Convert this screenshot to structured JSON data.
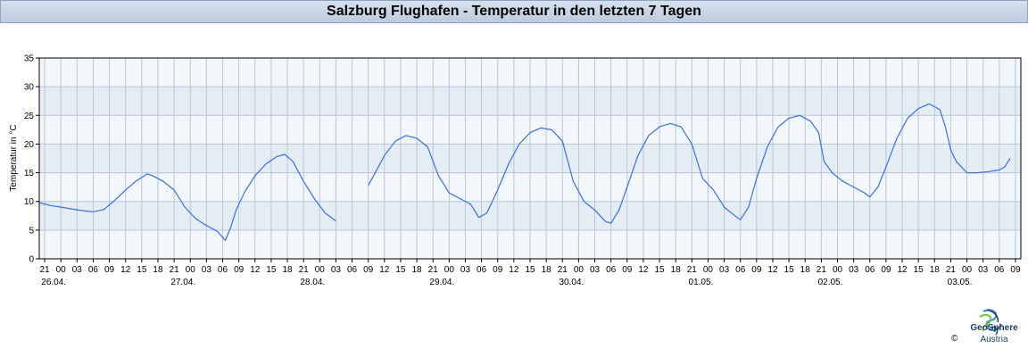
{
  "header": {
    "title": "Salzburg Flughafen - Temperatur in den letzten 7 Tagen"
  },
  "logo": {
    "name": "GeoSphere",
    "sub": "Austria",
    "copyright": "©",
    "icon": "geosphere-logo-icon",
    "colors": [
      "#2c8fcc",
      "#7ac143",
      "#1f3a5a"
    ]
  },
  "colors": {
    "series": "#3a6fd8",
    "band_light": "#f3f6fa",
    "band_dark": "#e6ecf4",
    "grid": "#b5c6dc",
    "axis": "#000000"
  },
  "chart_data": {
    "type": "line",
    "ylabel": "Temperatur in °C",
    "ylim": [
      0,
      35
    ],
    "yticks": [
      0,
      5,
      10,
      15,
      20,
      25,
      30,
      35
    ],
    "xlim": [
      "2025-04-25T20:00",
      "2025-05-03T10:00"
    ],
    "hour_ticks_every_hours": 3,
    "hour_ticks_first": "2025-04-25T21:00",
    "day_labels": [
      {
        "label": "26.04.",
        "at": "2025-04-26T00:00"
      },
      {
        "label": "27.04.",
        "at": "2025-04-27T00:00"
      },
      {
        "label": "28.04.",
        "at": "2025-04-28T00:00"
      },
      {
        "label": "29.04.",
        "at": "2025-04-29T00:00"
      },
      {
        "label": "30.04.",
        "at": "2025-04-30T00:00"
      },
      {
        "label": "01.05.",
        "at": "2025-05-01T00:00"
      },
      {
        "label": "02.05.",
        "at": "2025-05-02T00:00"
      },
      {
        "label": "03.05.",
        "at": "2025-05-03T00:00"
      }
    ],
    "grid": true,
    "series": [
      {
        "points": [
          [
            "2025-04-25T20:00",
            9.8
          ],
          [
            "2025-04-25T22:00",
            9.3
          ],
          [
            "2025-04-26T00:00",
            9.0
          ],
          [
            "2025-04-26T02:00",
            8.7
          ],
          [
            "2025-04-26T04:00",
            8.4
          ],
          [
            "2025-04-26T06:00",
            8.2
          ],
          [
            "2025-04-26T08:00",
            8.6
          ],
          [
            "2025-04-26T10:00",
            10.2
          ],
          [
            "2025-04-26T12:00",
            12.0
          ],
          [
            "2025-04-26T14:00",
            13.6
          ],
          [
            "2025-04-26T16:00",
            14.8
          ],
          [
            "2025-04-26T17:00",
            14.5
          ],
          [
            "2025-04-26T19:00",
            13.5
          ],
          [
            "2025-04-26T21:00",
            12.0
          ],
          [
            "2025-04-26T23:00",
            9.0
          ],
          [
            "2025-04-27T01:00",
            7.0
          ],
          [
            "2025-04-27T03:00",
            5.8
          ],
          [
            "2025-04-27T05:00",
            4.8
          ],
          [
            "2025-04-27T06:30",
            3.2
          ],
          [
            "2025-04-27T07:30",
            5.5
          ],
          [
            "2025-04-27T08:30",
            8.5
          ],
          [
            "2025-04-27T10:00",
            11.5
          ],
          [
            "2025-04-27T12:00",
            14.5
          ],
          [
            "2025-04-27T14:00",
            16.5
          ],
          [
            "2025-04-27T16:00",
            17.8
          ],
          [
            "2025-04-27T17:30",
            18.2
          ],
          [
            "2025-04-27T19:00",
            17.0
          ],
          [
            "2025-04-27T21:00",
            13.5
          ],
          [
            "2025-04-27T23:00",
            10.5
          ],
          [
            "2025-04-28T01:00",
            8.0
          ],
          [
            "2025-04-28T03:00",
            6.6
          ]
        ]
      },
      {
        "points": [
          [
            "2025-04-28T09:00",
            12.8
          ],
          [
            "2025-04-28T10:00",
            14.5
          ],
          [
            "2025-04-28T12:00",
            18.0
          ],
          [
            "2025-04-28T14:00",
            20.5
          ],
          [
            "2025-04-28T16:00",
            21.5
          ],
          [
            "2025-04-28T18:00",
            21.0
          ],
          [
            "2025-04-28T20:00",
            19.5
          ],
          [
            "2025-04-28T22:00",
            14.5
          ],
          [
            "2025-04-29T00:00",
            11.5
          ],
          [
            "2025-04-29T02:00",
            10.5
          ],
          [
            "2025-04-29T04:00",
            9.5
          ],
          [
            "2025-04-29T05:30",
            7.2
          ],
          [
            "2025-04-29T07:00",
            8.0
          ],
          [
            "2025-04-29T09:00",
            12.0
          ],
          [
            "2025-04-29T11:00",
            16.5
          ],
          [
            "2025-04-29T13:00",
            20.0
          ],
          [
            "2025-04-29T15:00",
            22.0
          ],
          [
            "2025-04-29T17:00",
            22.8
          ],
          [
            "2025-04-29T19:00",
            22.5
          ],
          [
            "2025-04-29T21:00",
            20.5
          ],
          [
            "2025-04-29T23:00",
            13.5
          ],
          [
            "2025-04-30T01:00",
            10.0
          ],
          [
            "2025-04-30T03:00",
            8.5
          ],
          [
            "2025-04-30T05:00",
            6.5
          ],
          [
            "2025-04-30T06:00",
            6.2
          ],
          [
            "2025-04-30T07:30",
            8.5
          ],
          [
            "2025-04-30T09:00",
            12.5
          ],
          [
            "2025-04-30T11:00",
            18.0
          ],
          [
            "2025-04-30T13:00",
            21.5
          ],
          [
            "2025-04-30T15:00",
            23.0
          ],
          [
            "2025-04-30T17:00",
            23.6
          ],
          [
            "2025-04-30T19:00",
            23.0
          ],
          [
            "2025-04-30T21:00",
            20.0
          ],
          [
            "2025-04-30T23:00",
            14.0
          ],
          [
            "2025-05-01T01:00",
            12.0
          ],
          [
            "2025-05-01T03:00",
            9.0
          ],
          [
            "2025-05-01T05:00",
            7.5
          ],
          [
            "2025-05-01T06:00",
            6.8
          ],
          [
            "2025-05-01T07:30",
            9.0
          ],
          [
            "2025-05-01T09:00",
            14.0
          ],
          [
            "2025-05-01T11:00",
            19.5
          ],
          [
            "2025-05-01T13:00",
            23.0
          ],
          [
            "2025-05-01T15:00",
            24.5
          ],
          [
            "2025-05-01T17:00",
            25.0
          ],
          [
            "2025-05-01T19:00",
            24.0
          ],
          [
            "2025-05-01T20:30",
            22.0
          ],
          [
            "2025-05-01T21:30",
            17.0
          ],
          [
            "2025-05-01T23:00",
            15.0
          ],
          [
            "2025-05-02T01:00",
            13.5
          ],
          [
            "2025-05-02T03:00",
            12.5
          ],
          [
            "2025-05-02T05:00",
            11.5
          ],
          [
            "2025-05-02T06:00",
            10.8
          ],
          [
            "2025-05-02T07:30",
            12.5
          ],
          [
            "2025-05-02T09:00",
            16.0
          ],
          [
            "2025-05-02T11:00",
            21.0
          ],
          [
            "2025-05-02T13:00",
            24.5
          ],
          [
            "2025-05-02T15:00",
            26.2
          ],
          [
            "2025-05-02T17:00",
            27.0
          ],
          [
            "2025-05-02T19:00",
            26.0
          ],
          [
            "2025-05-02T20:00",
            23.0
          ],
          [
            "2025-05-02T21:00",
            19.0
          ],
          [
            "2025-05-02T22:00",
            17.0
          ],
          [
            "2025-05-03T00:00",
            15.0
          ],
          [
            "2025-05-03T02:00",
            15.0
          ],
          [
            "2025-05-03T04:00",
            15.2
          ],
          [
            "2025-05-03T06:00",
            15.5
          ],
          [
            "2025-05-03T07:00",
            16.0
          ],
          [
            "2025-05-03T08:00",
            17.5
          ]
        ]
      }
    ]
  }
}
